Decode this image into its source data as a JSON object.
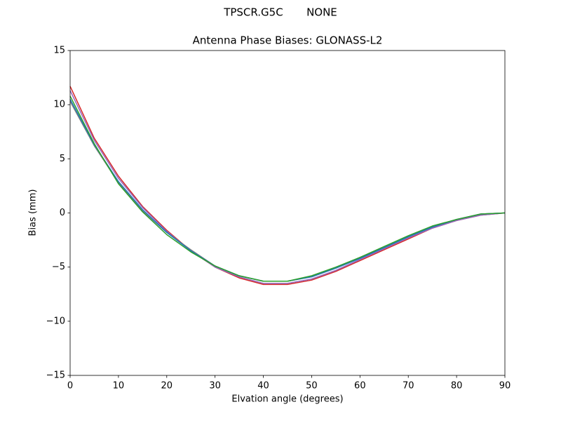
{
  "chart_data": {
    "type": "line",
    "suptitle": "TPSCR.G5C       NONE",
    "title": "Antenna Phase Biases: GLONASS-L2",
    "xlabel": "Elvation angle (degrees)",
    "ylabel": "Bias (mm)",
    "x": [
      0,
      5,
      10,
      15,
      20,
      25,
      30,
      35,
      40,
      45,
      50,
      55,
      60,
      65,
      70,
      75,
      80,
      85,
      90
    ],
    "series": [
      {
        "color": "#d62728",
        "values": [
          11.7,
          6.9,
          3.4,
          0.6,
          -1.6,
          -3.5,
          -5.0,
          -6.0,
          -6.6,
          -6.6,
          -6.2,
          -5.4,
          -4.4,
          -3.4,
          -2.4,
          -1.4,
          -0.7,
          -0.2,
          0.0
        ]
      },
      {
        "color": "#9467bd",
        "values": [
          11.3,
          6.7,
          3.2,
          0.5,
          -1.7,
          -3.5,
          -5.0,
          -5.9,
          -6.5,
          -6.5,
          -6.1,
          -5.3,
          -4.3,
          -3.3,
          -2.3,
          -1.4,
          -0.7,
          -0.2,
          0.0
        ]
      },
      {
        "color": "#7f7f7f",
        "values": [
          10.3,
          6.2,
          2.8,
          0.2,
          -1.8,
          -3.4,
          -4.9,
          -5.8,
          -6.3,
          -6.3,
          -5.9,
          -5.1,
          -4.1,
          -3.2,
          -2.2,
          -1.3,
          -0.6,
          -0.1,
          0.0
        ]
      },
      {
        "color": "#1f77b4",
        "values": [
          10.5,
          6.3,
          2.9,
          0.3,
          -1.8,
          -3.5,
          -4.9,
          -5.8,
          -6.3,
          -6.3,
          -5.9,
          -5.1,
          -4.2,
          -3.2,
          -2.2,
          -1.3,
          -0.6,
          -0.1,
          0.0
        ]
      },
      {
        "color": "#2ca02c",
        "values": [
          10.8,
          6.4,
          2.7,
          0.1,
          -2.0,
          -3.6,
          -4.9,
          -5.8,
          -6.3,
          -6.3,
          -5.8,
          -5.0,
          -4.1,
          -3.1,
          -2.1,
          -1.2,
          -0.6,
          -0.1,
          0.0
        ]
      }
    ],
    "xlim": [
      0,
      90
    ],
    "xticks": [
      0,
      10,
      20,
      30,
      40,
      50,
      60,
      70,
      80,
      90
    ],
    "ylim": [
      -15,
      15
    ],
    "yticks": [
      {
        "value": -15,
        "label": "−15"
      },
      {
        "value": -10,
        "label": "−10"
      },
      {
        "value": -5,
        "label": "−5"
      },
      0,
      5,
      10,
      15
    ],
    "grid": false
  }
}
